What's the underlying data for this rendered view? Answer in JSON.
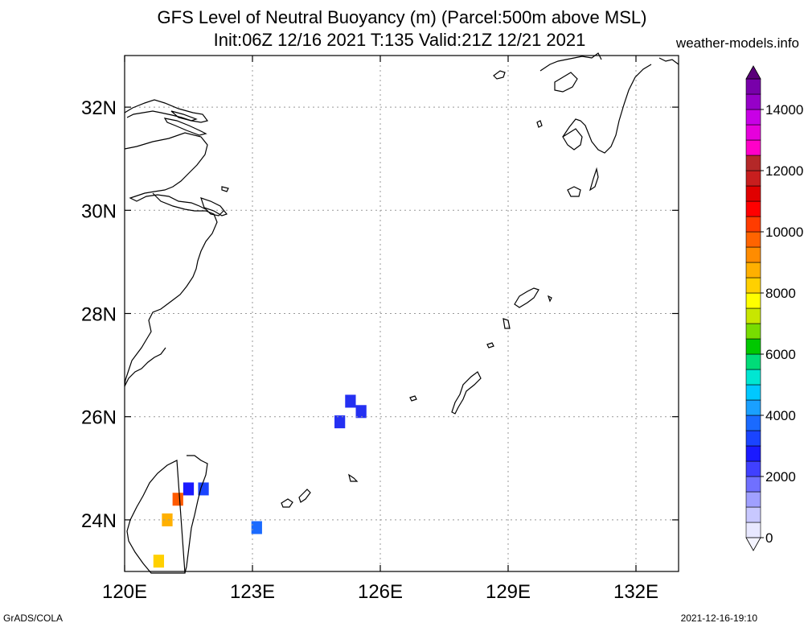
{
  "title_line1": "GFS Level of Neutral Buoyancy (m) (Parcel:500m above MSL)",
  "title_line2": "Init:06Z 12/16 2021 T:135 Valid:21Z 12/21 2021",
  "site": "weather-models.info",
  "footer_left": "GrADS/COLA",
  "footer_right": "2021-12-16-19:10",
  "map": {
    "lon_range": [
      120,
      133
    ],
    "lat_range": [
      23,
      33
    ],
    "lon_ticks": [
      {
        "value": 120,
        "label": "120E"
      },
      {
        "value": 123,
        "label": "123E"
      },
      {
        "value": 126,
        "label": "126E"
      },
      {
        "value": 129,
        "label": "129E"
      },
      {
        "value": 132,
        "label": "132E"
      }
    ],
    "lat_ticks": [
      {
        "value": 24,
        "label": "24N"
      },
      {
        "value": 26,
        "label": "26N"
      },
      {
        "value": 28,
        "label": "28N"
      },
      {
        "value": 30,
        "label": "30N"
      },
      {
        "value": 32,
        "label": "32N"
      }
    ],
    "grid": true,
    "colors": {
      "blue": "#1a1aff",
      "mid_blue": "#2e3cf0",
      "light_blue": "#2f7af5"
    },
    "cells": [
      {
        "lon": 125.3,
        "lat": 26.3,
        "value": 1500,
        "color": "#2430f2"
      },
      {
        "lon": 125.55,
        "lat": 26.1,
        "value": 1500,
        "color": "#2430f2"
      },
      {
        "lon": 125.05,
        "lat": 25.9,
        "value": 1500,
        "color": "#2430f2"
      },
      {
        "lon": 121.5,
        "lat": 24.6,
        "value": 1500,
        "color": "#1a1aff"
      },
      {
        "lon": 121.85,
        "lat": 24.6,
        "value": 1800,
        "color": "#1a44ff"
      },
      {
        "lon": 121.25,
        "lat": 24.4,
        "value": 8500,
        "color": "#ff5a00"
      },
      {
        "lon": 121.0,
        "lat": 24.0,
        "value": 7500,
        "color": "#ffb000"
      },
      {
        "lon": 123.1,
        "lat": 23.85,
        "value": 2500,
        "color": "#1a6aff"
      },
      {
        "lon": 120.8,
        "lat": 23.2,
        "value": 7000,
        "color": "#ffd000"
      }
    ]
  },
  "colorbar": {
    "labels": [
      "0",
      "2000",
      "4000",
      "6000",
      "8000",
      "10000",
      "12000",
      "14000"
    ],
    "min": 0,
    "max": 15000,
    "colors": [
      "#e8e8ff",
      "#c8c8ff",
      "#a0a0ff",
      "#7070ff",
      "#4040ff",
      "#1a1aff",
      "#1a44ff",
      "#1a6aff",
      "#1aa0ff",
      "#00c8ff",
      "#00e6d2",
      "#00dc78",
      "#00c800",
      "#78dc00",
      "#c8e600",
      "#ffff00",
      "#ffd000",
      "#ffb000",
      "#ff8c00",
      "#ff6400",
      "#ff3c00",
      "#ff0000",
      "#e00000",
      "#c81e1e",
      "#b42828",
      "#ff00c8",
      "#e600dc",
      "#c800e6",
      "#9600c8",
      "#7800aa"
    ]
  }
}
